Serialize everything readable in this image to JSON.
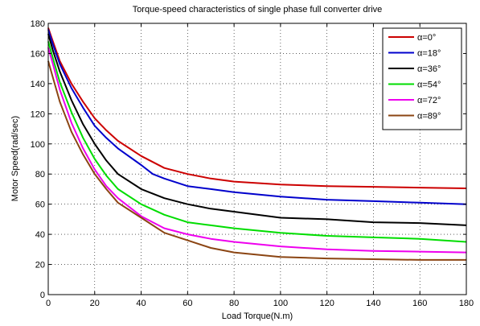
{
  "chart_data": {
    "type": "line",
    "title": "Torque-speed characteristics of single phase full converter drive",
    "xlabel": "Load Torque(N.m)",
    "ylabel": "Motor Speed(rad/sec)",
    "xlim": [
      0,
      180
    ],
    "ylim": [
      0,
      180
    ],
    "xticks": [
      0,
      20,
      40,
      60,
      80,
      100,
      120,
      140,
      160,
      180
    ],
    "yticks": [
      0,
      20,
      40,
      60,
      80,
      100,
      120,
      140,
      160,
      180
    ],
    "xtick_labels": [
      "0",
      "20",
      "40",
      "60",
      "80",
      "100",
      "120",
      "140",
      "160",
      "180"
    ],
    "ytick_labels": [
      "0",
      "20",
      "40",
      "60",
      "80",
      "100",
      "120",
      "140",
      "160",
      "180"
    ],
    "grid": true,
    "legend_position": "top-right",
    "series": [
      {
        "name": "α=0°",
        "color": "#cc0000",
        "x": [
          0,
          2,
          5,
          10,
          15,
          20,
          25,
          30,
          40,
          50,
          60,
          70,
          80,
          100,
          120,
          140,
          160,
          180
        ],
        "y": [
          177,
          168,
          155,
          140,
          128,
          117,
          109,
          102,
          92,
          84,
          80,
          77,
          75,
          73,
          72,
          71.5,
          71,
          70.5
        ]
      },
      {
        "name": "α=18°",
        "color": "#0000cc",
        "x": [
          0,
          2,
          5,
          10,
          15,
          20,
          25,
          30,
          40,
          45,
          50,
          60,
          70,
          80,
          100,
          120,
          140,
          160,
          180
        ],
        "y": [
          176,
          166,
          153,
          137,
          124,
          112,
          104,
          97,
          86,
          80,
          77,
          72,
          70,
          68,
          65,
          63,
          62,
          61,
          60
        ]
      },
      {
        "name": "α=36°",
        "color": "#000000",
        "x": [
          0,
          2,
          5,
          10,
          15,
          20,
          25,
          30,
          40,
          50,
          60,
          70,
          80,
          100,
          120,
          140,
          160,
          180
        ],
        "y": [
          173,
          162,
          148,
          129,
          113,
          100,
          89,
          80,
          70,
          64,
          60,
          57,
          55,
          51,
          50,
          48,
          47.5,
          46
        ]
      },
      {
        "name": "α=54°",
        "color": "#00dd00",
        "x": [
          0,
          2,
          5,
          10,
          15,
          20,
          25,
          30,
          40,
          50,
          60,
          70,
          80,
          100,
          120,
          140,
          160,
          180
        ],
        "y": [
          168,
          157,
          141,
          121,
          104,
          90,
          79,
          70,
          60,
          53,
          48,
          46,
          44,
          41,
          39,
          38,
          37,
          35
        ]
      },
      {
        "name": "α=72°",
        "color": "#ee00ee",
        "x": [
          0,
          2,
          5,
          10,
          15,
          20,
          25,
          30,
          40,
          50,
          60,
          70,
          80,
          100,
          120,
          140,
          160,
          180
        ],
        "y": [
          164,
          153,
          136,
          114,
          97,
          83,
          72,
          64,
          52,
          44,
          40,
          37,
          35,
          32,
          30,
          29,
          28.5,
          28
        ]
      },
      {
        "name": "α=89°",
        "color": "#8b4513",
        "x": [
          0,
          2,
          5,
          10,
          15,
          20,
          25,
          30,
          40,
          50,
          60,
          70,
          80,
          100,
          120,
          140,
          160,
          180
        ],
        "y": [
          155,
          144,
          128,
          108,
          93,
          80,
          70,
          61,
          51,
          41,
          36,
          31,
          28,
          25,
          24,
          23.5,
          23,
          23
        ]
      }
    ]
  }
}
